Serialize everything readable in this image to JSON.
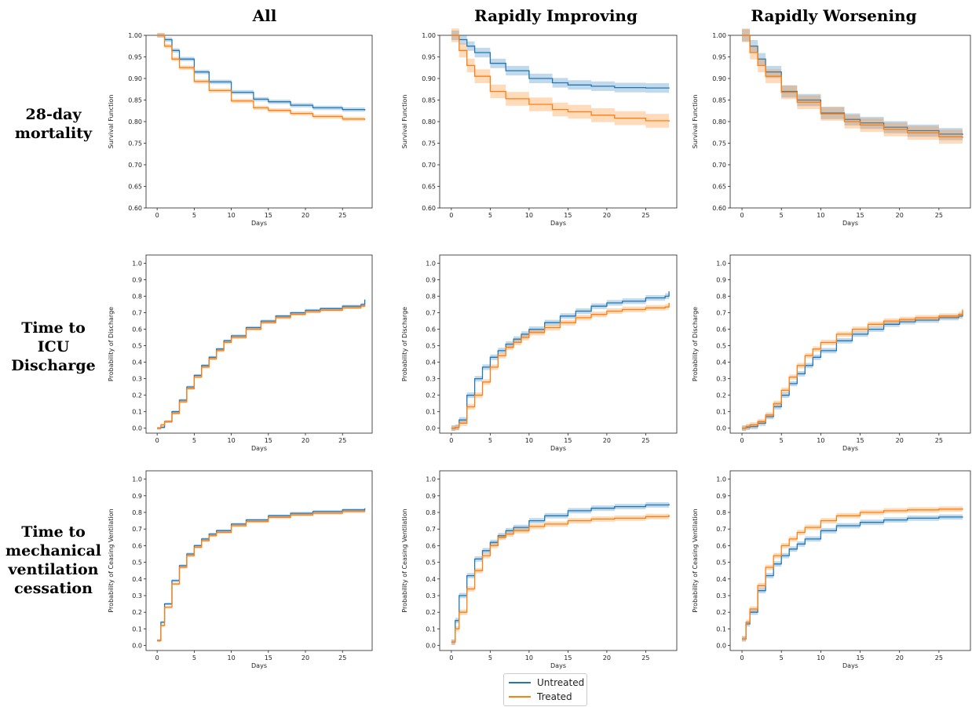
{
  "column_titles": [
    "All",
    "Rapidly Improving",
    "Rapidly Worsening"
  ],
  "row_titles": [
    [
      "28-day",
      "mortality"
    ],
    [
      "Time to",
      "ICU",
      "Discharge"
    ],
    [
      "Time to",
      "mechanical",
      "ventilation",
      "cessation"
    ]
  ],
  "legend": [
    {
      "name": "Untreated",
      "color": "#1f77b4"
    },
    {
      "name": "Treated",
      "color": "#ff7f0e"
    }
  ],
  "chart_data": [
    {
      "type": "line",
      "row": 0,
      "col": 0,
      "xlabel": "Days",
      "ylabel": "Survival Function",
      "xlim": [
        -1.5,
        29
      ],
      "ylim": [
        0.6,
        1.0
      ],
      "xticks": [
        0,
        5,
        10,
        15,
        20,
        25
      ],
      "yticks": [
        0.6,
        0.65,
        0.7,
        0.75,
        0.8,
        0.85,
        0.9,
        0.95,
        1.0
      ],
      "x": [
        0,
        1,
        2,
        3,
        5,
        7,
        10,
        13,
        15,
        18,
        21,
        25,
        28
      ],
      "series": [
        {
          "name": "Untreated",
          "values": [
            1.0,
            0.99,
            0.965,
            0.945,
            0.915,
            0.892,
            0.868,
            0.852,
            0.846,
            0.838,
            0.832,
            0.828,
            0.826
          ],
          "ci": 0.005
        },
        {
          "name": "Treated",
          "values": [
            1.0,
            0.975,
            0.945,
            0.925,
            0.893,
            0.872,
            0.848,
            0.832,
            0.826,
            0.819,
            0.812,
            0.806,
            0.804
          ],
          "ci": 0.005
        }
      ]
    },
    {
      "type": "line",
      "row": 0,
      "col": 1,
      "xlabel": "Days",
      "ylabel": "Survival Function",
      "xlim": [
        -1.5,
        29
      ],
      "ylim": [
        0.6,
        1.0
      ],
      "xticks": [
        0,
        5,
        10,
        15,
        20,
        25
      ],
      "yticks": [
        0.6,
        0.65,
        0.7,
        0.75,
        0.8,
        0.85,
        0.9,
        0.95,
        1.0
      ],
      "x": [
        0,
        1,
        2,
        3,
        5,
        7,
        10,
        13,
        15,
        18,
        21,
        25,
        28
      ],
      "series": [
        {
          "name": "Untreated",
          "values": [
            1.0,
            0.99,
            0.975,
            0.96,
            0.935,
            0.918,
            0.9,
            0.89,
            0.885,
            0.882,
            0.879,
            0.878,
            0.877
          ],
          "ci": 0.011
        },
        {
          "name": "Treated",
          "values": [
            1.0,
            0.965,
            0.93,
            0.905,
            0.87,
            0.853,
            0.84,
            0.828,
            0.823,
            0.815,
            0.808,
            0.802,
            0.8
          ],
          "ci": 0.016
        }
      ]
    },
    {
      "type": "line",
      "row": 0,
      "col": 2,
      "xlabel": "Days",
      "ylabel": "Survival Function",
      "xlim": [
        -1.5,
        29
      ],
      "ylim": [
        0.6,
        1.0
      ],
      "xticks": [
        0,
        5,
        10,
        15,
        20,
        25
      ],
      "yticks": [
        0.6,
        0.65,
        0.7,
        0.75,
        0.8,
        0.85,
        0.9,
        0.95,
        1.0
      ],
      "x": [
        0,
        1,
        2,
        3,
        5,
        7,
        10,
        13,
        15,
        18,
        21,
        25,
        28
      ],
      "series": [
        {
          "name": "Untreated",
          "values": [
            1.0,
            0.975,
            0.945,
            0.915,
            0.87,
            0.85,
            0.82,
            0.805,
            0.797,
            0.787,
            0.779,
            0.771,
            0.769
          ],
          "ci": 0.014
        },
        {
          "name": "Treated",
          "values": [
            1.0,
            0.96,
            0.93,
            0.905,
            0.868,
            0.845,
            0.818,
            0.8,
            0.792,
            0.782,
            0.774,
            0.765,
            0.762
          ],
          "ci": 0.016
        }
      ]
    },
    {
      "type": "line",
      "row": 1,
      "col": 0,
      "xlabel": "Days",
      "ylabel": "Probability of Discharge",
      "xlim": [
        -1.5,
        29
      ],
      "ylim": [
        -0.03,
        1.05
      ],
      "xticks": [
        0,
        5,
        10,
        15,
        20,
        25
      ],
      "yticks": [
        0.0,
        0.1,
        0.2,
        0.3,
        0.4,
        0.5,
        0.6,
        0.7,
        0.8,
        0.9,
        1.0
      ],
      "x": [
        0,
        0.5,
        1,
        2,
        3,
        4,
        5,
        6,
        7,
        8,
        9,
        10,
        12,
        14,
        16,
        18,
        20,
        22,
        25,
        27.5,
        28
      ],
      "series": [
        {
          "name": "Untreated",
          "values": [
            0.0,
            0.005,
            0.04,
            0.1,
            0.17,
            0.25,
            0.32,
            0.38,
            0.43,
            0.48,
            0.53,
            0.56,
            0.61,
            0.65,
            0.68,
            0.7,
            0.715,
            0.725,
            0.74,
            0.75,
            0.78
          ],
          "ci": 0.008
        },
        {
          "name": "Treated",
          "values": [
            0.0,
            0.02,
            0.04,
            0.09,
            0.16,
            0.24,
            0.31,
            0.37,
            0.42,
            0.47,
            0.52,
            0.55,
            0.6,
            0.64,
            0.67,
            0.69,
            0.705,
            0.715,
            0.73,
            0.74,
            0.75
          ],
          "ci": 0.008
        }
      ]
    },
    {
      "type": "line",
      "row": 1,
      "col": 1,
      "xlabel": "Days",
      "ylabel": "Probability of Discharge",
      "xlim": [
        -1.5,
        29
      ],
      "ylim": [
        -0.03,
        1.05
      ],
      "xticks": [
        0,
        5,
        10,
        15,
        20,
        25
      ],
      "yticks": [
        0.0,
        0.1,
        0.2,
        0.3,
        0.4,
        0.5,
        0.6,
        0.7,
        0.8,
        0.9,
        1.0
      ],
      "x": [
        0,
        0.5,
        1,
        2,
        3,
        4,
        5,
        6,
        7,
        8,
        9,
        10,
        12,
        14,
        16,
        18,
        20,
        22,
        25,
        27.5,
        28
      ],
      "series": [
        {
          "name": "Untreated",
          "values": [
            0.0,
            0.005,
            0.05,
            0.2,
            0.3,
            0.37,
            0.43,
            0.47,
            0.51,
            0.54,
            0.57,
            0.6,
            0.64,
            0.68,
            0.71,
            0.74,
            0.76,
            0.77,
            0.79,
            0.8,
            0.83
          ],
          "ci": 0.017
        },
        {
          "name": "Treated",
          "values": [
            0.0,
            0.005,
            0.03,
            0.13,
            0.2,
            0.28,
            0.37,
            0.44,
            0.49,
            0.52,
            0.55,
            0.58,
            0.61,
            0.64,
            0.67,
            0.69,
            0.71,
            0.72,
            0.73,
            0.735,
            0.76
          ],
          "ci": 0.017
        }
      ]
    },
    {
      "type": "line",
      "row": 1,
      "col": 2,
      "xlabel": "Days",
      "ylabel": "Probability of Discharge",
      "xlim": [
        -1.5,
        29
      ],
      "ylim": [
        -0.03,
        1.05
      ],
      "xticks": [
        0,
        5,
        10,
        15,
        20,
        25
      ],
      "yticks": [
        0.0,
        0.1,
        0.2,
        0.3,
        0.4,
        0.5,
        0.6,
        0.7,
        0.8,
        0.9,
        1.0
      ],
      "x": [
        0,
        0.5,
        1,
        2,
        3,
        4,
        5,
        6,
        7,
        8,
        9,
        10,
        12,
        14,
        16,
        18,
        20,
        22,
        25,
        27.5,
        28
      ],
      "series": [
        {
          "name": "Untreated",
          "values": [
            0.0,
            0.005,
            0.01,
            0.03,
            0.07,
            0.13,
            0.2,
            0.27,
            0.33,
            0.38,
            0.43,
            0.47,
            0.53,
            0.57,
            0.6,
            0.63,
            0.645,
            0.655,
            0.67,
            0.68,
            0.71
          ],
          "ci": 0.016
        },
        {
          "name": "Treated",
          "values": [
            0.0,
            0.01,
            0.02,
            0.04,
            0.08,
            0.15,
            0.23,
            0.31,
            0.38,
            0.44,
            0.48,
            0.52,
            0.57,
            0.6,
            0.63,
            0.65,
            0.66,
            0.67,
            0.68,
            0.69,
            0.72
          ],
          "ci": 0.016
        }
      ]
    },
    {
      "type": "line",
      "row": 2,
      "col": 0,
      "xlabel": "Days",
      "ylabel": "Probability of Ceasing Ventilation",
      "xlim": [
        -1.5,
        29
      ],
      "ylim": [
        -0.03,
        1.05
      ],
      "xticks": [
        0,
        5,
        10,
        15,
        20,
        25
      ],
      "yticks": [
        0.0,
        0.1,
        0.2,
        0.3,
        0.4,
        0.5,
        0.6,
        0.7,
        0.8,
        0.9,
        1.0
      ],
      "x": [
        0,
        0.5,
        1,
        2,
        3,
        4,
        5,
        6,
        7,
        8,
        10,
        12,
        15,
        18,
        21,
        25,
        28
      ],
      "series": [
        {
          "name": "Untreated",
          "values": [
            0.03,
            0.14,
            0.25,
            0.39,
            0.48,
            0.55,
            0.6,
            0.64,
            0.67,
            0.69,
            0.73,
            0.755,
            0.78,
            0.795,
            0.805,
            0.815,
            0.825
          ],
          "ci": 0.008
        },
        {
          "name": "Treated",
          "values": [
            0.03,
            0.12,
            0.23,
            0.37,
            0.47,
            0.54,
            0.59,
            0.63,
            0.66,
            0.68,
            0.72,
            0.745,
            0.77,
            0.785,
            0.795,
            0.805,
            0.81
          ],
          "ci": 0.008
        }
      ]
    },
    {
      "type": "line",
      "row": 2,
      "col": 1,
      "xlabel": "Days",
      "ylabel": "Probability of Ceasing Ventilation",
      "xlim": [
        -1.5,
        29
      ],
      "ylim": [
        -0.03,
        1.05
      ],
      "xticks": [
        0,
        5,
        10,
        15,
        20,
        25
      ],
      "yticks": [
        0.0,
        0.1,
        0.2,
        0.3,
        0.4,
        0.5,
        0.6,
        0.7,
        0.8,
        0.9,
        1.0
      ],
      "x": [
        0,
        0.5,
        1,
        2,
        3,
        4,
        5,
        6,
        7,
        8,
        10,
        12,
        15,
        18,
        21,
        25,
        28
      ],
      "series": [
        {
          "name": "Untreated",
          "values": [
            0.02,
            0.15,
            0.3,
            0.42,
            0.52,
            0.57,
            0.62,
            0.66,
            0.69,
            0.71,
            0.75,
            0.78,
            0.81,
            0.825,
            0.835,
            0.845,
            0.85
          ],
          "ci": 0.016
        },
        {
          "name": "Treated",
          "values": [
            0.02,
            0.1,
            0.2,
            0.34,
            0.45,
            0.54,
            0.6,
            0.65,
            0.67,
            0.69,
            0.715,
            0.73,
            0.75,
            0.76,
            0.765,
            0.775,
            0.785
          ],
          "ci": 0.016
        }
      ]
    },
    {
      "type": "line",
      "row": 2,
      "col": 2,
      "xlabel": "Days",
      "ylabel": "Probability of Ceasing Ventilation",
      "xlim": [
        -1.5,
        29
      ],
      "ylim": [
        -0.03,
        1.05
      ],
      "xticks": [
        0,
        5,
        10,
        15,
        20,
        25
      ],
      "yticks": [
        0.0,
        0.1,
        0.2,
        0.3,
        0.4,
        0.5,
        0.6,
        0.7,
        0.8,
        0.9,
        1.0
      ],
      "x": [
        0,
        0.5,
        1,
        2,
        3,
        4,
        5,
        6,
        7,
        8,
        10,
        12,
        15,
        18,
        21,
        25,
        28
      ],
      "series": [
        {
          "name": "Untreated",
          "values": [
            0.04,
            0.13,
            0.2,
            0.33,
            0.42,
            0.49,
            0.54,
            0.58,
            0.61,
            0.64,
            0.69,
            0.72,
            0.74,
            0.755,
            0.765,
            0.772,
            0.775
          ],
          "ci": 0.016
        },
        {
          "name": "Treated",
          "values": [
            0.04,
            0.14,
            0.22,
            0.36,
            0.47,
            0.54,
            0.6,
            0.64,
            0.68,
            0.71,
            0.75,
            0.78,
            0.8,
            0.81,
            0.815,
            0.82,
            0.825
          ],
          "ci": 0.016
        }
      ]
    }
  ]
}
